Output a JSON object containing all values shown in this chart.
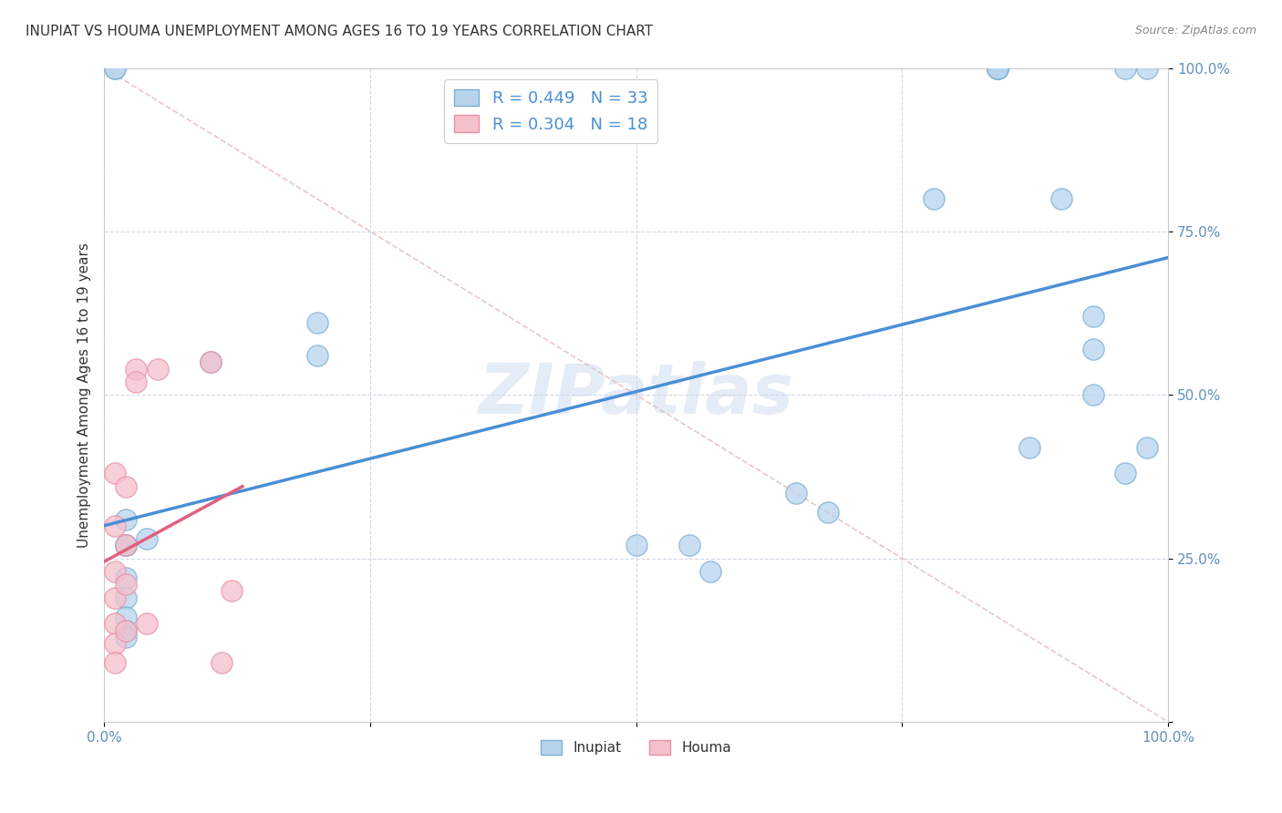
{
  "title": "INUPIAT VS HOUMA UNEMPLOYMENT AMONG AGES 16 TO 19 YEARS CORRELATION CHART",
  "source": "Source: ZipAtlas.com",
  "ylabel": "Unemployment Among Ages 16 to 19 years",
  "xlim": [
    0,
    1
  ],
  "ylim": [
    0,
    1
  ],
  "xticks": [
    0.0,
    0.25,
    0.5,
    0.75,
    1.0
  ],
  "yticks": [
    0.0,
    0.25,
    0.5,
    0.75,
    1.0
  ],
  "xticklabels": [
    "0.0%",
    "",
    "",
    "",
    "100.0%"
  ],
  "yticklabels": [
    "",
    "25.0%",
    "50.0%",
    "75.0%",
    "100.0%"
  ],
  "background_color": "#ffffff",
  "watermark": "ZIPatlas",
  "inupiat_color": "#b8d4ed",
  "houma_color": "#f4c0cc",
  "inupiat_edge_color": "#7aafd4",
  "houma_edge_color": "#e890a8",
  "inupiat_line_color": "#4a8fd4",
  "houma_line_color": "#e06080",
  "diagonal_color": "#e8c0c0",
  "inupiat_R": 0.449,
  "inupiat_N": 33,
  "houma_R": 0.304,
  "houma_N": 18,
  "inupiat_x": [
    0.01,
    0.01,
    0.02,
    0.02,
    0.02,
    0.02,
    0.02,
    0.02,
    0.02,
    0.02,
    0.04,
    0.1,
    0.2,
    0.2,
    0.5,
    0.55,
    0.57,
    0.65,
    0.68,
    0.78,
    0.84,
    0.84,
    0.84,
    0.84,
    0.87,
    0.9,
    0.93,
    0.93,
    0.93,
    0.96,
    0.96,
    0.98,
    0.98
  ],
  "inupiat_y": [
    1.0,
    1.0,
    0.31,
    0.27,
    0.22,
    0.19,
    0.16,
    0.14,
    0.13,
    0.27,
    0.28,
    0.55,
    0.61,
    0.56,
    0.27,
    0.27,
    0.23,
    0.35,
    0.32,
    0.8,
    1.0,
    1.0,
    1.0,
    1.0,
    0.42,
    0.8,
    0.62,
    0.57,
    0.5,
    0.38,
    1.0,
    0.42,
    1.0
  ],
  "houma_x": [
    0.01,
    0.01,
    0.01,
    0.01,
    0.01,
    0.01,
    0.01,
    0.02,
    0.02,
    0.02,
    0.02,
    0.03,
    0.03,
    0.04,
    0.05,
    0.1,
    0.11,
    0.12
  ],
  "houma_y": [
    0.38,
    0.3,
    0.23,
    0.15,
    0.12,
    0.09,
    0.19,
    0.36,
    0.27,
    0.21,
    0.14,
    0.54,
    0.52,
    0.15,
    0.54,
    0.55,
    0.09,
    0.2
  ],
  "inupiat_line_x0": 0.0,
  "inupiat_line_y0": 0.3,
  "inupiat_line_x1": 1.0,
  "inupiat_line_y1": 0.71,
  "houma_line_x0": 0.0,
  "houma_line_y0": 0.245,
  "houma_line_x1": 0.13,
  "houma_line_y1": 0.36,
  "legend_inupiat_label": "R = 0.449   N = 33",
  "legend_houma_label": "R = 0.304   N = 18",
  "legend_inupiat_label2": "Inupiat",
  "legend_houma_label2": "Houma",
  "title_fontsize": 11,
  "axis_label_fontsize": 11,
  "tick_fontsize": 11,
  "legend_fontsize": 13
}
